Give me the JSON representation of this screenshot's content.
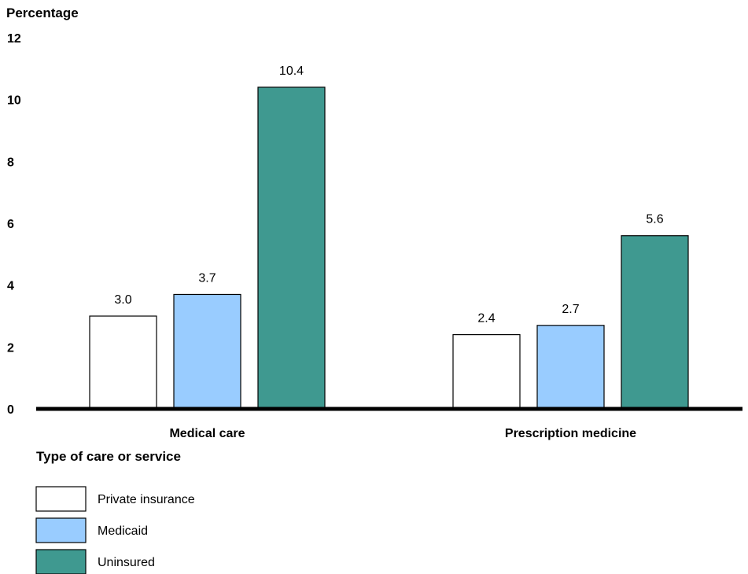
{
  "chart_data": {
    "type": "bar",
    "title": "",
    "ylabel": "Percentage",
    "xlabel": "Type of care or service",
    "ylim": [
      0,
      12
    ],
    "yticks": [
      0,
      2,
      4,
      6,
      8,
      10,
      12
    ],
    "categories": [
      "Medical care",
      "Prescription medicine"
    ],
    "series": [
      {
        "name": "Private insurance",
        "values": [
          3.0,
          2.4
        ],
        "labels": [
          "3.0",
          "2.4"
        ],
        "color": "#ffffff"
      },
      {
        "name": "Medicaid",
        "values": [
          3.7,
          2.7
        ],
        "labels": [
          "3.7",
          "2.7"
        ],
        "color": "#99ccff"
      },
      {
        "name": "Uninsured",
        "values": [
          10.4,
          5.6
        ],
        "labels": [
          "10.4",
          "5.6"
        ],
        "color": "#3f9990"
      }
    ],
    "legend_position": "bottom-left",
    "grid": false
  }
}
